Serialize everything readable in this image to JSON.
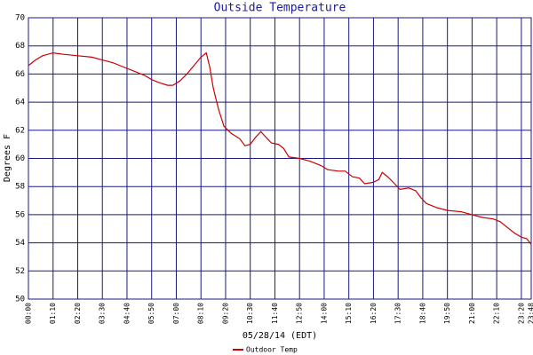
{
  "chart_data": {
    "type": "line",
    "title": "Outside Temperature",
    "x_label": "05/28/14 (EDT)",
    "y_label": "Degrees F",
    "x": [
      0,
      20,
      40,
      70,
      100,
      140,
      180,
      210,
      240,
      270,
      300,
      330,
      350,
      370,
      395,
      410,
      430,
      450,
      470,
      490,
      505,
      515,
      525,
      540,
      555,
      575,
      600,
      615,
      630,
      645,
      660,
      675,
      690,
      710,
      725,
      740,
      770,
      800,
      830,
      850,
      880,
      900,
      920,
      940,
      955,
      980,
      995,
      1005,
      1020,
      1040,
      1055,
      1080,
      1100,
      1115,
      1130,
      1160,
      1190,
      1230,
      1260,
      1290,
      1320,
      1340,
      1360,
      1380,
      1400,
      1415,
      1428
    ],
    "series": [
      {
        "name": "Outdoor Temp",
        "color": "#cc0000",
        "values": [
          66.6,
          67.0,
          67.3,
          67.5,
          67.4,
          67.3,
          67.2,
          67.0,
          66.8,
          66.5,
          66.2,
          65.9,
          65.6,
          65.4,
          65.2,
          65.2,
          65.5,
          66.0,
          66.6,
          67.2,
          67.5,
          66.5,
          65.0,
          63.5,
          62.3,
          61.8,
          61.4,
          60.9,
          61.0,
          61.5,
          61.9,
          61.5,
          61.1,
          61.0,
          60.7,
          60.1,
          60.0,
          59.8,
          59.5,
          59.2,
          59.1,
          59.1,
          58.7,
          58.6,
          58.2,
          58.3,
          58.5,
          59.0,
          58.7,
          58.2,
          57.8,
          57.9,
          57.7,
          57.2,
          56.8,
          56.5,
          56.3,
          56.2,
          56.0,
          55.8,
          55.7,
          55.5,
          55.1,
          54.7,
          54.4,
          54.3,
          53.9
        ]
      }
    ],
    "xlim": [
      0,
      1428
    ],
    "xticks": [
      {
        "value": 0,
        "label": "00:00"
      },
      {
        "value": 70,
        "label": "01:10"
      },
      {
        "value": 140,
        "label": "02:20"
      },
      {
        "value": 210,
        "label": "03:30"
      },
      {
        "value": 280,
        "label": "04:40"
      },
      {
        "value": 350,
        "label": "05:50"
      },
      {
        "value": 420,
        "label": "07:00"
      },
      {
        "value": 490,
        "label": "08:10"
      },
      {
        "value": 560,
        "label": "09:20"
      },
      {
        "value": 630,
        "label": "10:30"
      },
      {
        "value": 700,
        "label": "11:40"
      },
      {
        "value": 770,
        "label": "12:50"
      },
      {
        "value": 840,
        "label": "14:00"
      },
      {
        "value": 910,
        "label": "15:10"
      },
      {
        "value": 980,
        "label": "16:20"
      },
      {
        "value": 1050,
        "label": "17:30"
      },
      {
        "value": 1120,
        "label": "18:40"
      },
      {
        "value": 1190,
        "label": "19:50"
      },
      {
        "value": 1260,
        "label": "21:00"
      },
      {
        "value": 1330,
        "label": "22:10"
      },
      {
        "value": 1400,
        "label": "23:20"
      },
      {
        "value": 1428,
        "label": "23:48"
      }
    ],
    "ylim": [
      50,
      70
    ],
    "yticks": [
      50,
      52,
      54,
      56,
      58,
      60,
      62,
      64,
      66,
      68,
      70
    ],
    "grid": true,
    "grid_color": "#1a1a80"
  }
}
